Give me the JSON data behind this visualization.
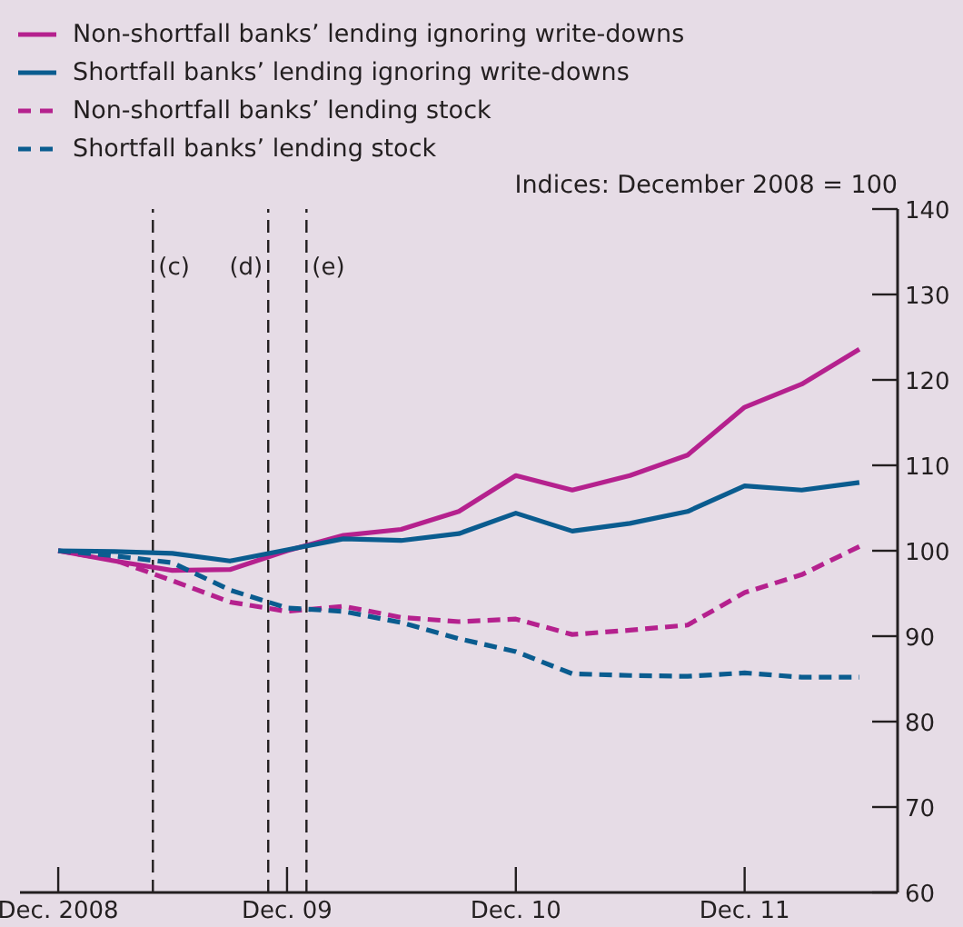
{
  "chart_data": {
    "type": "line",
    "subtitle": "Indices:  December 2008 = 100",
    "x": [
      "2008-12",
      "2009-03",
      "2009-06",
      "2009-09",
      "2009-12",
      "2010-03",
      "2010-06",
      "2010-09",
      "2010-12",
      "2011-03",
      "2011-06",
      "2011-09",
      "2011-12",
      "2012-03",
      "2012-06"
    ],
    "series": [
      {
        "name": "Non-shortfall banks’ lending ignoring write-downs",
        "color": "#b5218e",
        "line_style": "solid",
        "values": [
          100,
          98.8,
          97.7,
          97.8,
          100,
          101.8,
          102.5,
          104.6,
          108.8,
          107.1,
          108.8,
          111.2,
          116.8,
          119.5,
          123.6
        ]
      },
      {
        "name": "Shortfall banks’ lending ignoring write-downs",
        "color": "#0a5c8f",
        "line_style": "solid",
        "values": [
          100,
          99.9,
          99.7,
          98.8,
          100.1,
          101.4,
          101.2,
          102,
          104.4,
          102.3,
          103.2,
          104.6,
          107.6,
          107.1,
          108
        ]
      },
      {
        "name": "Non-shortfall banks’ lending stock",
        "color": "#b5218e",
        "line_style": "dashed",
        "values": [
          100,
          98.9,
          96.5,
          94,
          92.9,
          93.5,
          92.2,
          91.7,
          92,
          90.2,
          90.7,
          91.3,
          95.1,
          97.2,
          100.5
        ]
      },
      {
        "name": "Shortfall banks’ lending stock",
        "color": "#0a5c8f",
        "line_style": "dashed",
        "values": [
          100,
          99.4,
          98.6,
          95.4,
          93.3,
          92.9,
          91.6,
          89.7,
          88.2,
          85.6,
          85.4,
          85.3,
          85.7,
          85.2,
          85.2
        ]
      }
    ],
    "xlim": [
      "2008-10",
      "2012-08"
    ],
    "xticks": [
      {
        "value": "2008-12",
        "label": "Dec. 2008"
      },
      {
        "value": "2009-12",
        "label": "Dec. 09"
      },
      {
        "value": "2010-12",
        "label": "Dec. 10"
      },
      {
        "value": "2011-12",
        "label": "Dec. 11"
      }
    ],
    "ylim": [
      60,
      140
    ],
    "yticks": [
      60,
      70,
      80,
      90,
      100,
      110,
      120,
      130,
      140
    ],
    "ref_lines": [
      {
        "axis": "x",
        "value": "2009-05",
        "label": "(c)",
        "color": "#231f20",
        "line_style": "dashed"
      },
      {
        "axis": "x",
        "value": "2009-11",
        "label": "(d)",
        "color": "#231f20",
        "line_style": "dashed"
      },
      {
        "axis": "x",
        "value": "2010-01",
        "label": "(e)",
        "color": "#231f20",
        "line_style": "dashed"
      }
    ],
    "grid": false,
    "legend": "top left",
    "marker": "none"
  }
}
